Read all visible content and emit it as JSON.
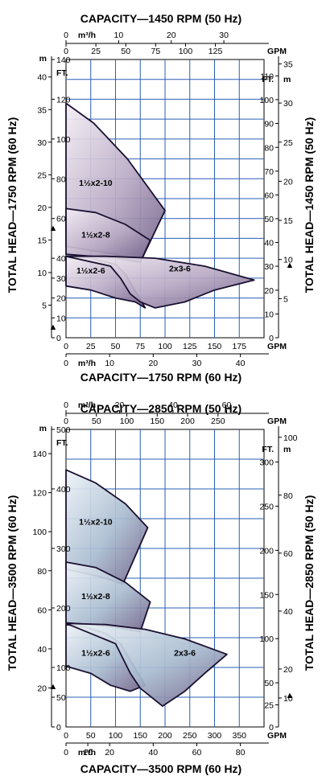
{
  "chart_data": [
    {
      "type": "area",
      "title_top": "CAPACITY—1450 RPM (50 Hz)",
      "title_bottom": "CAPACITY—1750 RPM (60 Hz)",
      "ylabel_left": "TOTAL HEAD—1750 RPM (60 Hz)",
      "ylabel_right": "TOTAL HEAD—1450 RPM (50 Hz)",
      "bottom_gpm": {
        "unit": "GPM",
        "min": 0,
        "max": 200,
        "ticks": [
          "0",
          "25",
          "50",
          "75",
          "100",
          "125",
          "150",
          "175"
        ]
      },
      "bottom_m3h": {
        "unit": "m³/h",
        "ticks": [
          {
            "v": 0,
            "t": "0"
          },
          {
            "v": 10,
            "t": "10"
          },
          {
            "v": 20,
            "t": "20"
          },
          {
            "v": 30,
            "t": "30"
          },
          {
            "v": 40,
            "t": "40"
          }
        ]
      },
      "top_gpm": {
        "unit": "GPM",
        "ticks": [
          {
            "v": 0,
            "t": "0"
          },
          {
            "v": 25,
            "t": "25"
          },
          {
            "v": 50,
            "t": "50"
          },
          {
            "v": 75,
            "t": "75"
          },
          {
            "v": 100,
            "t": "100"
          },
          {
            "v": 125,
            "t": "125"
          }
        ]
      },
      "top_m3h": {
        "unit": "m³/h",
        "ticks": [
          {
            "v": 0,
            "t": "0"
          },
          {
            "v": 10,
            "t": "10"
          },
          {
            "v": 20,
            "t": "20"
          },
          {
            "v": 30,
            "t": "30"
          }
        ]
      },
      "left_ft": {
        "unit": "FT.",
        "min": 0,
        "max": 140,
        "ticks": [
          "0",
          "10",
          "20",
          "30",
          "40",
          "60",
          "80",
          "100",
          "120",
          "140"
        ]
      },
      "left_m": {
        "unit": "m",
        "ticks": [
          "5",
          "10",
          "15",
          "20",
          "25",
          "30",
          "35",
          "40"
        ]
      },
      "right_ft": {
        "unit": "FT.",
        "ticks": [
          "0",
          "10",
          "20",
          "30",
          "40",
          "50",
          "60",
          "70",
          "80",
          "90",
          "100",
          "110"
        ]
      },
      "right_m": {
        "unit": "m",
        "ticks": [
          "5",
          "10",
          "15",
          "20",
          "25",
          "30",
          "35"
        ]
      },
      "regions": [
        {
          "name": "1½x2-10",
          "points": [
            [
              0,
              118
            ],
            [
              28,
              108
            ],
            [
              62,
              90
            ],
            [
              100,
              64
            ],
            [
              75,
              38
            ],
            [
              50,
              42
            ],
            [
              25,
              44
            ],
            [
              0,
              46
            ]
          ]
        },
        {
          "name": "1½x2-8",
          "points": [
            [
              0,
              65
            ],
            [
              30,
              63
            ],
            [
              60,
              57
            ],
            [
              85,
              49
            ],
            [
              75,
              38
            ],
            [
              50,
              40
            ],
            [
              25,
              41
            ],
            [
              0,
              42
            ]
          ]
        },
        {
          "name": "1½x2-6",
          "points": [
            [
              0,
              41
            ],
            [
              25,
              40
            ],
            [
              50,
              37
            ],
            [
              60,
              32
            ],
            [
              80,
              15
            ],
            [
              70,
              18
            ],
            [
              50,
              20
            ],
            [
              25,
              24
            ],
            [
              0,
              26
            ]
          ]
        },
        {
          "name": "2x3-6",
          "points": [
            [
              0,
              41
            ],
            [
              40,
              41
            ],
            [
              90,
              40
            ],
            [
              140,
              36
            ],
            [
              190,
              29
            ],
            [
              150,
              24
            ],
            [
              120,
              18
            ],
            [
              90,
              15
            ],
            [
              75,
              18
            ],
            [
              65,
              22
            ],
            [
              55,
              30
            ],
            [
              45,
              36
            ],
            [
              0,
              41
            ]
          ]
        }
      ],
      "npsh_markers": [
        "▲",
        "▲",
        "▲"
      ]
    },
    {
      "type": "area",
      "title_top": "CAPACITY—2850 RPM (50 Hz)",
      "title_bottom": "CAPACITY—3500 RPM (60 Hz)",
      "ylabel_left": "TOTAL HEAD—3500 RPM (60 Hz)",
      "ylabel_right": "TOTAL HEAD—2850 RPM (50 Hz)",
      "bottom_gpm": {
        "unit": "GPM",
        "min": 0,
        "max": 400,
        "ticks": [
          "0",
          "50",
          "100",
          "150",
          "200",
          "250",
          "300",
          "350"
        ]
      },
      "bottom_m3h": {
        "unit": "m³/h",
        "ticks": [
          {
            "v": 0,
            "t": "0"
          },
          {
            "v": 10,
            "t": "10"
          },
          {
            "v": 20,
            "t": "20"
          },
          {
            "v": 40,
            "t": "40"
          },
          {
            "v": 60,
            "t": "60"
          },
          {
            "v": 80,
            "t": "80"
          }
        ]
      },
      "top_gpm": {
        "unit": "GPM",
        "ticks": [
          {
            "v": 0,
            "t": "0"
          },
          {
            "v": 50,
            "t": "50"
          },
          {
            "v": 100,
            "t": "100"
          },
          {
            "v": 150,
            "t": "150"
          },
          {
            "v": 200,
            "t": "200"
          },
          {
            "v": 250,
            "t": "250"
          }
        ]
      },
      "top_m3h": {
        "unit": "m³/h",
        "ticks": [
          {
            "v": 0,
            "t": "0"
          },
          {
            "v": 20,
            "t": "20"
          },
          {
            "v": 40,
            "t": "40"
          },
          {
            "v": 60,
            "t": "60"
          }
        ]
      },
      "left_ft": {
        "unit": "FT.",
        "min": 0,
        "max": 500,
        "ticks": [
          "0",
          "50",
          "100",
          "200",
          "300",
          "400",
          "500"
        ]
      },
      "left_m": {
        "unit": "m",
        "ticks": [
          "20",
          "40",
          "60",
          "80",
          "100",
          "120",
          "140"
        ]
      },
      "right_ft": {
        "unit": "FT.",
        "ticks": [
          "0",
          "25",
          "50",
          "100",
          "150",
          "200",
          "250",
          "300"
        ]
      },
      "right_m": {
        "unit": "m",
        "ticks": [
          "10",
          "20",
          "40",
          "60",
          "80",
          "100"
        ]
      },
      "regions": [
        {
          "name": "1½x2-10",
          "points": [
            [
              0,
              432
            ],
            [
              60,
              410
            ],
            [
              120,
              375
            ],
            [
              165,
              335
            ],
            [
              115,
              240
            ],
            [
              80,
              250
            ],
            [
              40,
              258
            ],
            [
              0,
              265
            ]
          ]
        },
        {
          "name": "1½x2-8",
          "points": [
            [
              0,
              277
            ],
            [
              60,
              268
            ],
            [
              120,
              243
            ],
            [
              170,
              210
            ],
            [
              150,
              160
            ],
            [
              100,
              167
            ],
            [
              50,
              172
            ],
            [
              0,
              175
            ]
          ]
        },
        {
          "name": "1½x2-6",
          "points": [
            [
              0,
              172
            ],
            [
              40,
              168
            ],
            [
              80,
              157
            ],
            [
              110,
              140
            ],
            [
              160,
              70
            ],
            [
              130,
              60
            ],
            [
              90,
              70
            ],
            [
              50,
              90
            ],
            [
              0,
              102
            ]
          ]
        },
        {
          "name": "2x3-6",
          "points": [
            [
              0,
              174
            ],
            [
              80,
              172
            ],
            [
              160,
              164
            ],
            [
              240,
              148
            ],
            [
              325,
              122
            ],
            [
              280,
              90
            ],
            [
              240,
              60
            ],
            [
              195,
              35
            ],
            [
              150,
              65
            ],
            [
              130,
              90
            ],
            [
              115,
              115
            ],
            [
              100,
              140
            ],
            [
              0,
              174
            ]
          ]
        }
      ],
      "npsh_markers": [
        "▲",
        "▲"
      ]
    }
  ]
}
